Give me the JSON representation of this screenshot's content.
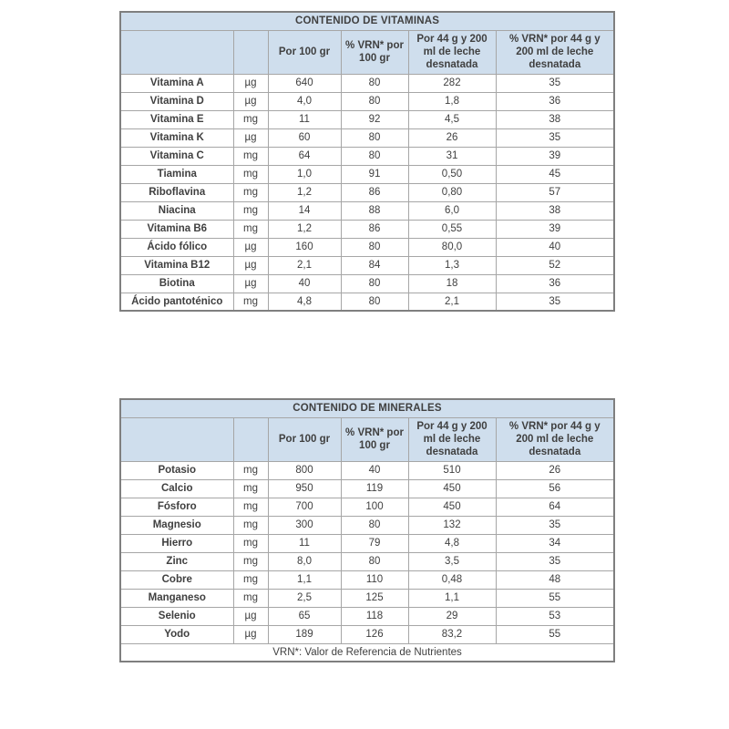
{
  "page_background": "#ffffff",
  "colors": {
    "header_bg": "#cfdeed",
    "header_text": "#1f3864",
    "body_text": "#404040",
    "border_outer": "#7f7f7f",
    "border_inner": "#a6a6a6"
  },
  "tables": [
    {
      "title": "CONTENIDO DE VITAMINAS",
      "column_headers": [
        "",
        "",
        "Por 100 gr",
        "% VRN* por 100 gr",
        "Por 44 g y 200 ml de leche desnatada",
        "% VRN* por 44 g y 200 ml de leche desnatada"
      ],
      "rows": [
        {
          "name": "Vitamina A",
          "unit": "µg",
          "per100": "640",
          "vrn100": "80",
          "per44": "282",
          "vrn44": "35"
        },
        {
          "name": "Vitamina D",
          "unit": "µg",
          "per100": "4,0",
          "vrn100": "80",
          "per44": "1,8",
          "vrn44": "36"
        },
        {
          "name": "Vitamina E",
          "unit": "mg",
          "per100": "11",
          "vrn100": "92",
          "per44": "4,5",
          "vrn44": "38"
        },
        {
          "name": "Vitamina K",
          "unit": "µg",
          "per100": "60",
          "vrn100": "80",
          "per44": "26",
          "vrn44": "35"
        },
        {
          "name": "Vitamina C",
          "unit": "mg",
          "per100": "64",
          "vrn100": "80",
          "per44": "31",
          "vrn44": "39"
        },
        {
          "name": "Tiamina",
          "unit": "mg",
          "per100": "1,0",
          "vrn100": "91",
          "per44": "0,50",
          "vrn44": "45"
        },
        {
          "name": "Riboflavina",
          "unit": "mg",
          "per100": "1,2",
          "vrn100": "86",
          "per44": "0,80",
          "vrn44": "57"
        },
        {
          "name": "Niacina",
          "unit": "mg",
          "per100": "14",
          "vrn100": "88",
          "per44": "6,0",
          "vrn44": "38"
        },
        {
          "name": "Vitamina B6",
          "unit": "mg",
          "per100": "1,2",
          "vrn100": "86",
          "per44": "0,55",
          "vrn44": "39"
        },
        {
          "name": "Ácido fólico",
          "unit": "µg",
          "per100": "160",
          "vrn100": "80",
          "per44": "80,0",
          "vrn44": "40"
        },
        {
          "name": "Vitamina B12",
          "unit": "µg",
          "per100": "2,1",
          "vrn100": "84",
          "per44": "1,3",
          "vrn44": "52"
        },
        {
          "name": "Biotina",
          "unit": "µg",
          "per100": "40",
          "vrn100": "80",
          "per44": "18",
          "vrn44": "36"
        },
        {
          "name": "Ácido pantoténico",
          "unit": "mg",
          "per100": "4,8",
          "vrn100": "80",
          "per44": "2,1",
          "vrn44": "35"
        }
      ]
    },
    {
      "title": "CONTENIDO DE MINERALES",
      "column_headers": [
        "",
        "",
        "Por 100 gr",
        "% VRN* por 100 gr",
        "Por 44 g y 200 ml de leche desnatada",
        "% VRN* por 44 g y 200 ml de leche desnatada"
      ],
      "rows": [
        {
          "name": "Potasio",
          "unit": "mg",
          "per100": "800",
          "vrn100": "40",
          "per44": "510",
          "vrn44": "26"
        },
        {
          "name": "Calcio",
          "unit": "mg",
          "per100": "950",
          "vrn100": "119",
          "per44": "450",
          "vrn44": "56"
        },
        {
          "name": "Fósforo",
          "unit": "mg",
          "per100": "700",
          "vrn100": "100",
          "per44": "450",
          "vrn44": "64"
        },
        {
          "name": "Magnesio",
          "unit": "mg",
          "per100": "300",
          "vrn100": "80",
          "per44": "132",
          "vrn44": "35"
        },
        {
          "name": "Hierro",
          "unit": "mg",
          "per100": "11",
          "vrn100": "79",
          "per44": "4,8",
          "vrn44": "34"
        },
        {
          "name": "Zinc",
          "unit": "mg",
          "per100": "8,0",
          "vrn100": "80",
          "per44": "3,5",
          "vrn44": "35"
        },
        {
          "name": "Cobre",
          "unit": "mg",
          "per100": "1,1",
          "vrn100": "110",
          "per44": "0,48",
          "vrn44": "48"
        },
        {
          "name": "Manganeso",
          "unit": "mg",
          "per100": "2,5",
          "vrn100": "125",
          "per44": "1,1",
          "vrn44": "55"
        },
        {
          "name": "Selenio",
          "unit": "µg",
          "per100": "65",
          "vrn100": "118",
          "per44": "29",
          "vrn44": "53"
        },
        {
          "name": "Yodo",
          "unit": "µg",
          "per100": "189",
          "vrn100": "126",
          "per44": "83,2",
          "vrn44": "55"
        }
      ],
      "footnote": "VRN*: Valor de Referencia de Nutrientes"
    }
  ]
}
